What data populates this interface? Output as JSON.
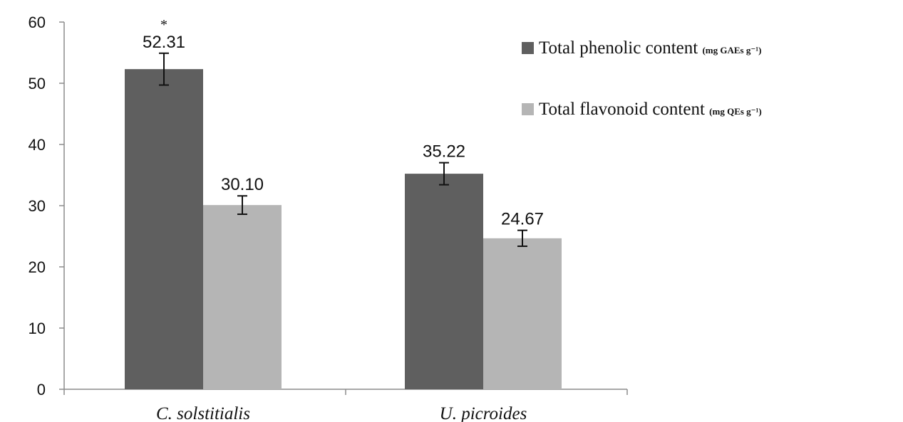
{
  "chart_data": {
    "type": "bar",
    "title": "",
    "xlabel": "",
    "ylabel": "",
    "ylim": [
      0,
      60
    ],
    "yticks": [
      0,
      10,
      20,
      30,
      40,
      50,
      60
    ],
    "grid": false,
    "legend_position": "top-right",
    "categories": [
      "C. solstitialis",
      "U. picroides"
    ],
    "series": [
      {
        "name": "Total phenolic content",
        "unit": "(mg GAEs g⁻¹)",
        "color": "#5f5f5f",
        "values": [
          52.31,
          35.22
        ],
        "labels": [
          "52.31",
          "35.22"
        ],
        "errors": [
          2.6,
          1.8
        ]
      },
      {
        "name": "Total flavonoid content",
        "unit": "(mg QEs g⁻¹)",
        "color": "#b5b5b5",
        "values": [
          30.1,
          24.67
        ],
        "labels": [
          "30.10",
          "24.67"
        ],
        "errors": [
          1.5,
          1.3
        ]
      }
    ],
    "annotations": [
      {
        "category_index": 0,
        "series_index": 0,
        "text": "*"
      }
    ]
  }
}
